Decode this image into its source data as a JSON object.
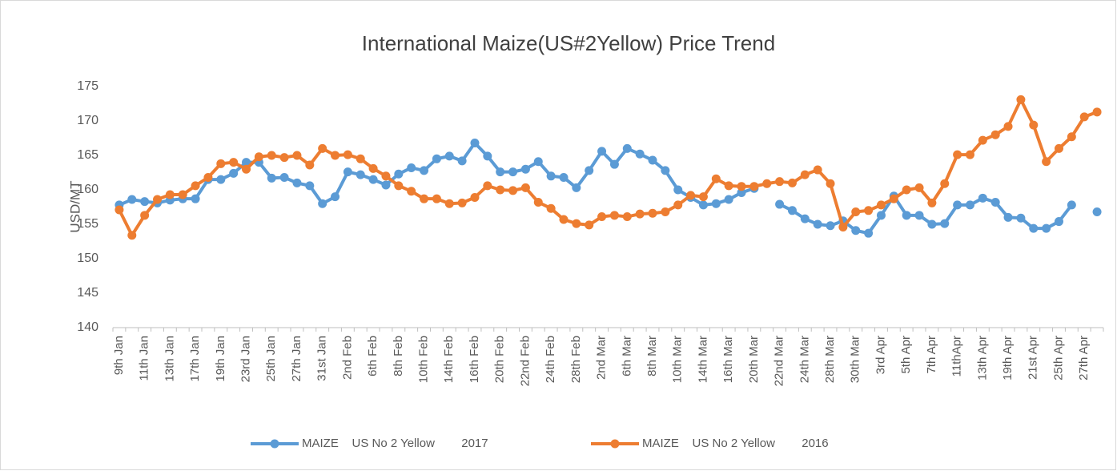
{
  "chart_data": {
    "type": "line",
    "title": "International Maize(US#2Yellow) Price Trend",
    "y_label": "USD/MT",
    "categories": [
      "9th Jan",
      null,
      "11th Jan",
      null,
      "13th Jan",
      null,
      "17th Jan",
      null,
      "19th Jan",
      null,
      "23rd Jan",
      null,
      "25th Jan",
      null,
      "27th Jan",
      null,
      "31st Jan",
      null,
      "2nd Feb",
      null,
      "6th Feb",
      null,
      "8th Feb",
      null,
      "10th Feb",
      null,
      "14th Feb",
      null,
      "16th Feb",
      null,
      "20th Feb",
      null,
      "22nd Feb",
      null,
      "24th Feb",
      null,
      "28th Feb",
      null,
      "2nd Mar",
      null,
      "6th Mar",
      null,
      "8th Mar",
      null,
      "10th Mar",
      null,
      "14th Mar",
      null,
      "16th Mar",
      null,
      "20th Mar",
      null,
      "22nd Mar",
      null,
      "24th Mar",
      null,
      "28th Mar",
      null,
      "30th Mar",
      null,
      "3rd Apr",
      null,
      "5th Apr",
      null,
      "7th Apr",
      null,
      "11thApr",
      null,
      "13th Apr",
      null,
      "19th Apr",
      null,
      "21st Apr",
      null,
      "25th Apr",
      null,
      "27th Apr",
      null
    ],
    "series": [
      {
        "name": "MAIZE    US No 2 Yellow        2017",
        "color": "#5b9bd5",
        "values": [
          157.8,
          158.6,
          158.3,
          158.1,
          158.5,
          158.7,
          158.7,
          161.5,
          161.5,
          162.4,
          164.0,
          164.0,
          161.7,
          161.8,
          161.0,
          160.6,
          158.0,
          159.0,
          162.6,
          162.2,
          161.5,
          160.7,
          162.3,
          163.2,
          162.8,
          164.5,
          164.9,
          164.2,
          166.8,
          164.9,
          162.6,
          162.6,
          163.0,
          164.1,
          162.0,
          161.8,
          160.3,
          162.8,
          165.6,
          163.7,
          166.0,
          165.2,
          164.3,
          162.8,
          160.0,
          158.9,
          157.8,
          158.0,
          158.6,
          159.6,
          160.2,
          null,
          157.9,
          157.0,
          155.8,
          155.0,
          154.8,
          155.5,
          154.1,
          153.7,
          156.3,
          159.1,
          156.3,
          156.3,
          155.0,
          155.1,
          157.8,
          157.8,
          158.8,
          158.2,
          156.0,
          155.9,
          154.4,
          154.4,
          155.4,
          157.8,
          null,
          156.8
        ]
      },
      {
        "name": "MAIZE    US No 2 Yellow        2016",
        "color": "#ed7d31",
        "values": [
          157.1,
          153.4,
          156.3,
          158.6,
          159.3,
          159.3,
          160.6,
          161.8,
          163.8,
          164.0,
          163.0,
          164.8,
          165.0,
          164.7,
          165.0,
          163.6,
          166.0,
          165.0,
          165.1,
          164.5,
          163.1,
          162.0,
          160.6,
          159.8,
          158.7,
          158.7,
          158.0,
          158.1,
          158.9,
          160.6,
          160.0,
          159.9,
          160.3,
          158.2,
          157.3,
          155.7,
          155.1,
          154.9,
          156.1,
          156.3,
          156.1,
          156.5,
          156.6,
          156.8,
          157.8,
          159.2,
          159.0,
          161.6,
          160.6,
          160.5,
          160.5,
          160.9,
          161.2,
          161.0,
          162.2,
          162.9,
          160.9,
          154.6,
          156.8,
          157.0,
          157.8,
          158.7,
          160.0,
          160.3,
          158.1,
          160.9,
          165.1,
          165.1,
          167.2,
          168.0,
          169.2,
          173.1,
          169.4,
          164.1,
          166.0,
          167.7,
          170.6,
          171.3
        ]
      }
    ],
    "ylim": [
      140,
      175
    ],
    "yticks": [
      140,
      145,
      150,
      155,
      160,
      165,
      170,
      175
    ],
    "grid": false,
    "legend": "bottom"
  }
}
